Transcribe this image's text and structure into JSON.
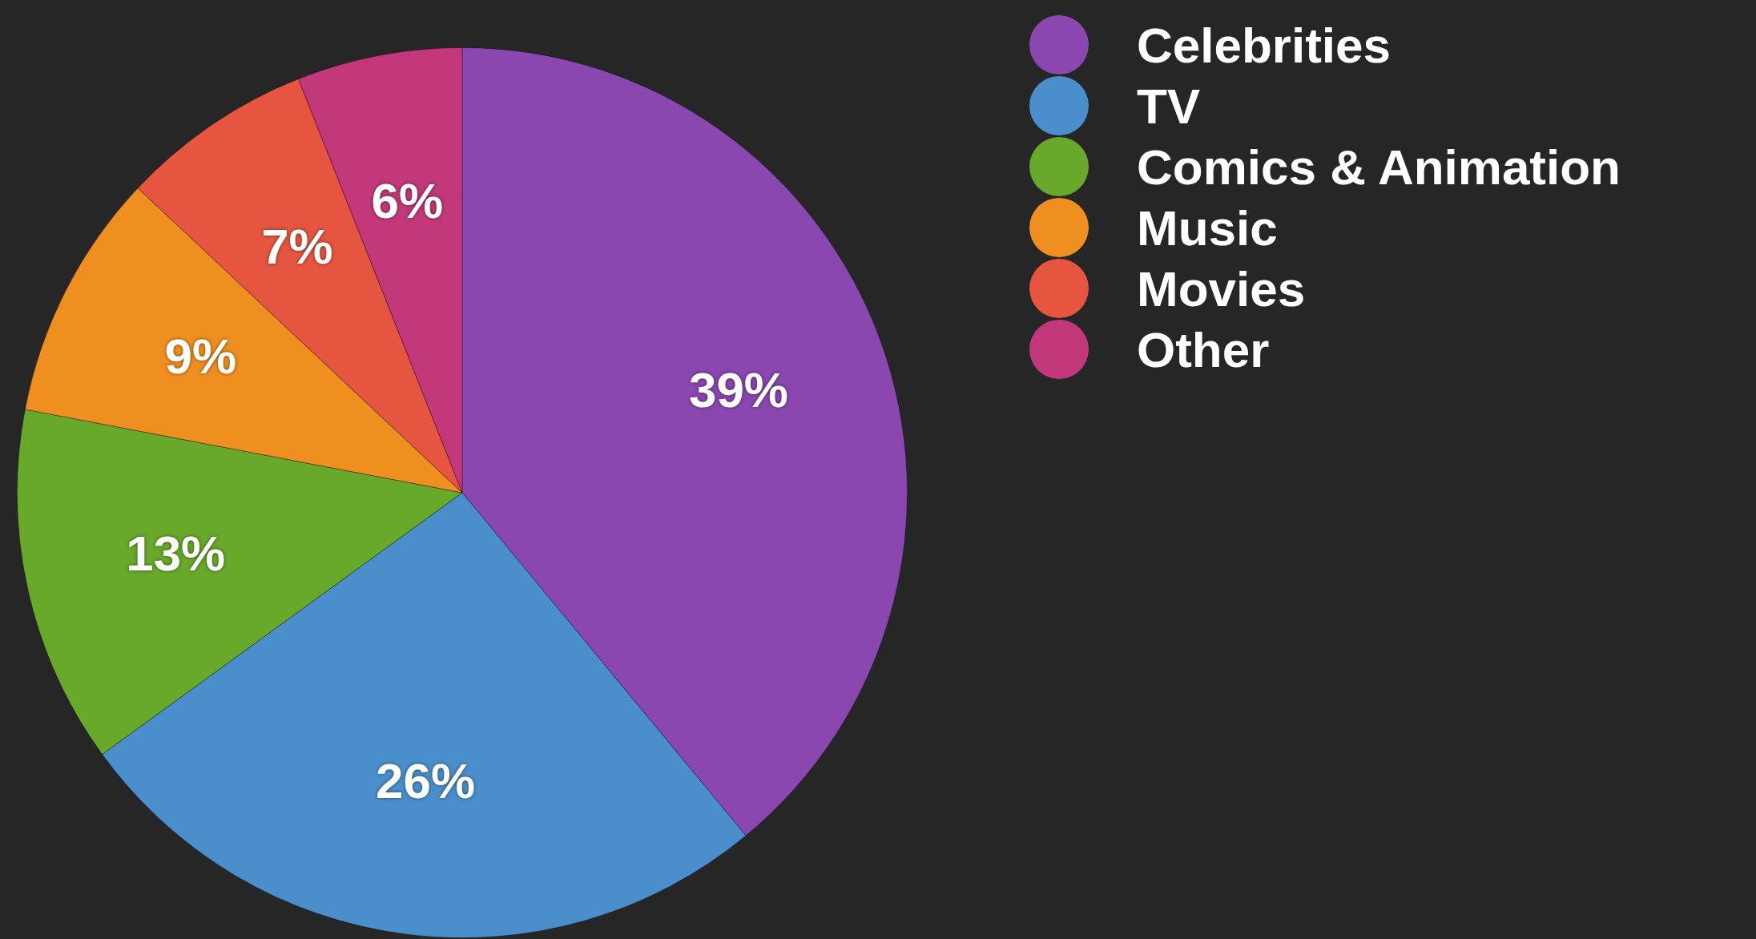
{
  "chart_data": {
    "type": "pie",
    "categories": [
      "Celebrities",
      "TV",
      "Comics & Animation",
      "Music",
      "Movies",
      "Other"
    ],
    "values": [
      39,
      26,
      13,
      9,
      7,
      6
    ],
    "colors": [
      "#8a47b0",
      "#4a8fcb",
      "#68a82a",
      "#ef8f1f",
      "#e6553f",
      "#c2387a"
    ],
    "value_labels": [
      "39%",
      "26%",
      "13%",
      "9%",
      "7%",
      "6%"
    ],
    "legend": "top right"
  }
}
